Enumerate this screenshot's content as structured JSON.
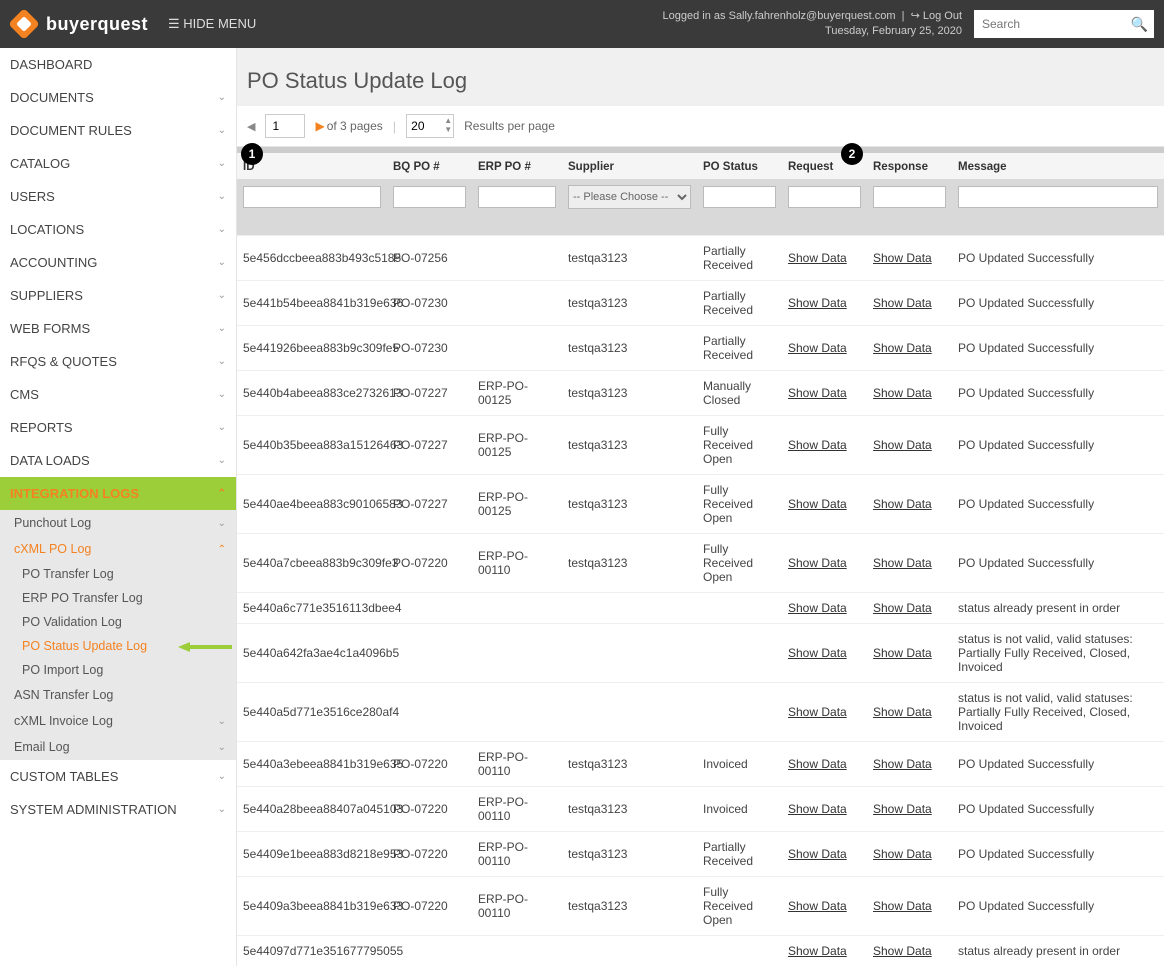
{
  "header": {
    "brand": "buyerquest",
    "hide_menu": "☰ HIDE MENU",
    "logged_in_as": "Logged in as Sally.fahrenholz@buyerquest.com",
    "logout": "Log Out",
    "date": "Tuesday, February 25, 2020",
    "search_placeholder": "Search"
  },
  "sidebar": {
    "items": [
      {
        "label": "DASHBOARD",
        "chev": ""
      },
      {
        "label": "DOCUMENTS",
        "chev": "⌄"
      },
      {
        "label": "DOCUMENT RULES",
        "chev": "⌄"
      },
      {
        "label": "CATALOG",
        "chev": "⌄"
      },
      {
        "label": "USERS",
        "chev": "⌄"
      },
      {
        "label": "LOCATIONS",
        "chev": "⌄"
      },
      {
        "label": "ACCOUNTING",
        "chev": "⌄"
      },
      {
        "label": "SUPPLIERS",
        "chev": "⌄"
      },
      {
        "label": "WEB FORMS",
        "chev": "⌄"
      },
      {
        "label": "RFQS & QUOTES",
        "chev": "⌄"
      },
      {
        "label": "CMS",
        "chev": "⌄"
      },
      {
        "label": "REPORTS",
        "chev": "⌄"
      },
      {
        "label": "DATA LOADS",
        "chev": "⌄"
      }
    ],
    "integration": {
      "label": "INTEGRATION LOGS",
      "chev": "⌃"
    },
    "sub": {
      "punchout": {
        "label": "Punchout Log",
        "chev": "⌄"
      },
      "cxml": {
        "label": "cXML PO Log",
        "chev": "⌃"
      },
      "cxml_children": [
        {
          "label": "PO Transfer Log"
        },
        {
          "label": "ERP PO Transfer Log"
        },
        {
          "label": "PO Validation Log"
        },
        {
          "label": "PO Status Update Log",
          "active": true
        },
        {
          "label": "PO Import Log"
        }
      ],
      "asn": {
        "label": "ASN Transfer Log",
        "chev": ""
      },
      "invoice": {
        "label": "cXML Invoice Log",
        "chev": "⌄"
      },
      "email": {
        "label": "Email Log",
        "chev": "⌄"
      }
    },
    "tail": [
      {
        "label": "CUSTOM TABLES",
        "chev": "⌄"
      },
      {
        "label": "SYSTEM ADMINISTRATION",
        "chev": "⌄"
      }
    ]
  },
  "page": {
    "title": "PO Status Update Log",
    "pager": {
      "current": "1",
      "of": "of 3 pages",
      "perpage": "20",
      "results_label": "Results per page"
    },
    "dropdown_placeholder": "-- Please Choose --",
    "columns": [
      "ID",
      "BQ PO #",
      "ERP PO #",
      "Supplier",
      "PO Status",
      "Request",
      "Response",
      "Message"
    ],
    "show_data": "Show Data",
    "rows": [
      {
        "id": "5e456dccbeea883b493c5185",
        "bq": "PO-07256",
        "erp": "",
        "sup": "testqa3123",
        "stat": "Partially Received",
        "msg": "PO Updated Successfully"
      },
      {
        "id": "5e441b54beea8841b319e636",
        "bq": "PO-07230",
        "erp": "",
        "sup": "testqa3123",
        "stat": "Partially Received",
        "msg": "PO Updated Successfully"
      },
      {
        "id": "5e441926beea883b9c309fe5",
        "bq": "PO-07230",
        "erp": "",
        "sup": "testqa3123",
        "stat": "Partially Received",
        "msg": "PO Updated Successfully"
      },
      {
        "id": "5e440b4abeea883ce2732613",
        "bq": "PO-07227",
        "erp": "ERP-PO-00125",
        "sup": "testqa3123",
        "stat": "Manually Closed",
        "msg": "PO Updated Successfully"
      },
      {
        "id": "5e440b35beea883a15126463",
        "bq": "PO-07227",
        "erp": "ERP-PO-00125",
        "sup": "testqa3123",
        "stat": "Fully Received Open",
        "msg": "PO Updated Successfully"
      },
      {
        "id": "5e440ae4beea883c90106583",
        "bq": "PO-07227",
        "erp": "ERP-PO-00125",
        "sup": "testqa3123",
        "stat": "Fully Received Open",
        "msg": "PO Updated Successfully"
      },
      {
        "id": "5e440a7cbeea883b9c309fe3",
        "bq": "PO-07220",
        "erp": "ERP-PO-00110",
        "sup": "testqa3123",
        "stat": "Fully Received Open",
        "msg": "PO Updated Successfully"
      },
      {
        "id": "5e440a6c771e3516113dbee4",
        "bq": "",
        "erp": "",
        "sup": "",
        "stat": "",
        "msg": "status already present in order"
      },
      {
        "id": "5e440a642fa3ae4c1a4096b5",
        "bq": "",
        "erp": "",
        "sup": "",
        "stat": "",
        "msg": "status is not valid, valid statuses: Partially Fully Received, Closed, Invoiced"
      },
      {
        "id": "5e440a5d771e3516ce280af4",
        "bq": "",
        "erp": "",
        "sup": "",
        "stat": "",
        "msg": "status is not valid, valid statuses: Partially Fully Received, Closed, Invoiced"
      },
      {
        "id": "5e440a3ebeea8841b319e635",
        "bq": "PO-07220",
        "erp": "ERP-PO-00110",
        "sup": "testqa3123",
        "stat": "Invoiced",
        "msg": "PO Updated Successfully"
      },
      {
        "id": "5e440a28beea88407a045103",
        "bq": "PO-07220",
        "erp": "ERP-PO-00110",
        "sup": "testqa3123",
        "stat": "Invoiced",
        "msg": "PO Updated Successfully"
      },
      {
        "id": "5e4409e1beea883d8218e953",
        "bq": "PO-07220",
        "erp": "ERP-PO-00110",
        "sup": "testqa3123",
        "stat": "Partially Received",
        "msg": "PO Updated Successfully"
      },
      {
        "id": "5e4409a3beea8841b319e633",
        "bq": "PO-07220",
        "erp": "ERP-PO-00110",
        "sup": "testqa3123",
        "stat": "Fully Received Open",
        "msg": "PO Updated Successfully"
      },
      {
        "id": "5e44097d771e351677795055",
        "bq": "",
        "erp": "",
        "sup": "",
        "stat": "",
        "msg": "status already present in order"
      }
    ]
  },
  "callouts": {
    "one": "1",
    "two": "2"
  }
}
